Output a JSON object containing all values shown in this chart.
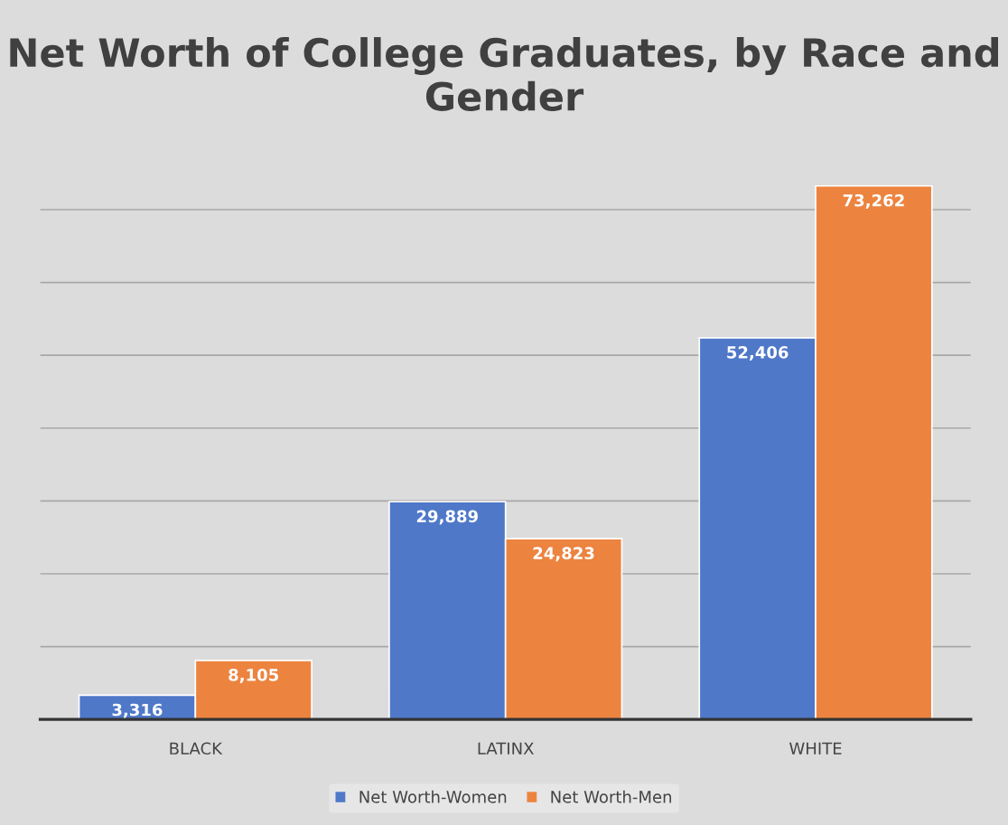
{
  "chart_data": {
    "type": "bar",
    "title": "Net Worth of College Graduates, by Race and Gender",
    "categories": [
      "BLACK",
      "LATINX",
      "WHITE"
    ],
    "series": [
      {
        "name": "Net Worth-Women",
        "color": "#4f78c8",
        "values": [
          3316,
          29889,
          52406
        ],
        "value_labels": [
          "3,316",
          "29,889",
          "52,406"
        ]
      },
      {
        "name": "Net Worth-Men",
        "color": "#ec8440",
        "values": [
          8105,
          24823,
          73262
        ],
        "value_labels": [
          "8,105",
          "24,823",
          "73,262"
        ]
      }
    ],
    "tick_labels": "x",
    "grid": "y",
    "legend": "bottom"
  }
}
